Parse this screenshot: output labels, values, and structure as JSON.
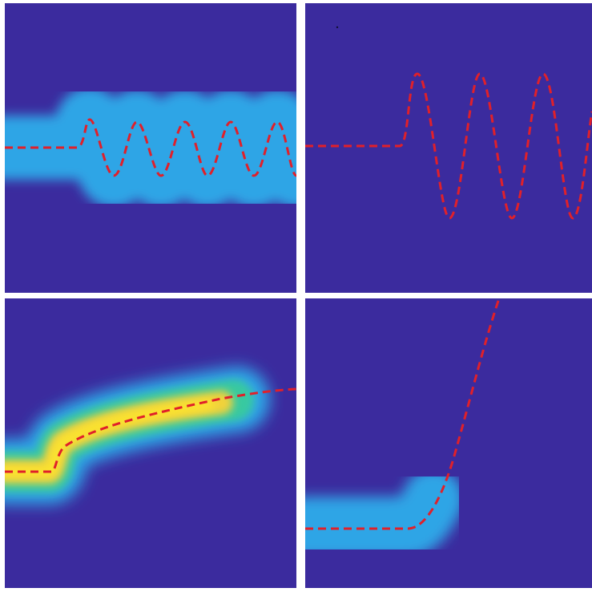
{
  "background_color": "#3b2b9e",
  "curve_color": "#e0202a",
  "colormap": [
    "#3b2b9e",
    "#2fa5e6",
    "#37c9a0",
    "#f1d23a",
    "#fbe52f"
  ],
  "panels": [
    {
      "name": "panel-oscillation-tracked",
      "band_follows_curve": true,
      "curve": "damped-sine-small"
    },
    {
      "name": "panel-oscillation-lost",
      "band_follows_curve": false,
      "curve": "sine-large"
    },
    {
      "name": "panel-growth-tracked",
      "band_follows_curve": true,
      "curve": "saturating-rise"
    },
    {
      "name": "panel-growth-lost",
      "band_follows_curve": false,
      "curve": "exponential-rise"
    }
  ]
}
